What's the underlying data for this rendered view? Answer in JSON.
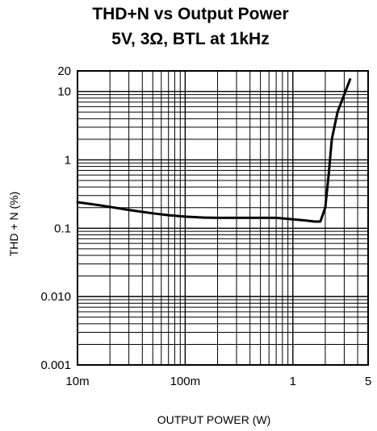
{
  "chart_data": {
    "type": "line",
    "title": "THD+N vs Output Power",
    "subtitle": "5V, 3Ω, BTL at 1kHz",
    "xlabel": "OUTPUT POWER (W)",
    "ylabel": "THD + N (%)",
    "x_scale": "log",
    "y_scale": "log",
    "xlim": [
      0.01,
      5
    ],
    "ylim": [
      0.001,
      20
    ],
    "grid": true,
    "x_ticks": [
      {
        "value": 0.01,
        "label": "10m"
      },
      {
        "value": 0.1,
        "label": "100m"
      },
      {
        "value": 1,
        "label": "1"
      },
      {
        "value": 5,
        "label": "5"
      }
    ],
    "y_ticks": [
      {
        "value": 20,
        "label": "20"
      },
      {
        "value": 10,
        "label": "10"
      },
      {
        "value": 1,
        "label": "1"
      },
      {
        "value": 0.1,
        "label": "0.1"
      },
      {
        "value": 0.01,
        "label": "0.010"
      },
      {
        "value": 0.001,
        "label": "0.001"
      }
    ],
    "series": [
      {
        "x": [
          0.01,
          0.015,
          0.02,
          0.03,
          0.05,
          0.07,
          0.1,
          0.15,
          0.2,
          0.3,
          0.5,
          0.6,
          0.7,
          1.0,
          1.3,
          1.6,
          1.8,
          2.0,
          2.15,
          2.3,
          2.6,
          3.0,
          3.4
        ],
        "y": [
          0.24,
          0.22,
          0.205,
          0.185,
          0.165,
          0.155,
          0.148,
          0.143,
          0.142,
          0.142,
          0.142,
          0.142,
          0.142,
          0.135,
          0.13,
          0.125,
          0.125,
          0.2,
          0.6,
          2.0,
          5.0,
          9.0,
          15.0
        ]
      }
    ]
  }
}
